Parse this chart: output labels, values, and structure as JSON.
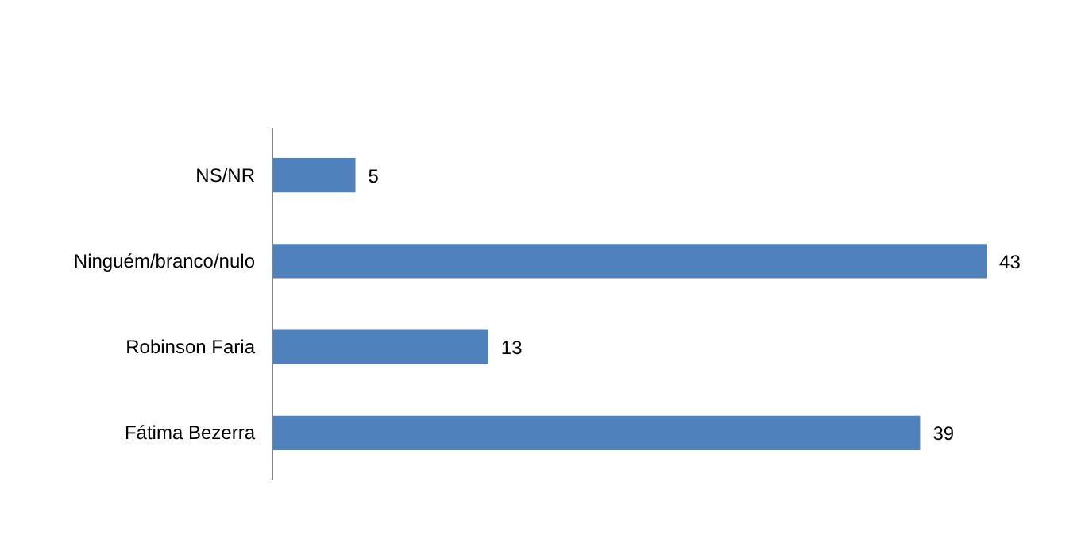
{
  "chart_data": {
    "type": "bar",
    "orientation": "horizontal",
    "categories": [
      "NS/NR",
      "Ninguém/branco/nulo",
      "Robinson Faria",
      "Fátima Bezerra"
    ],
    "values": [
      5,
      43,
      13,
      39
    ],
    "color": "#4f81bd",
    "data_labels": true
  }
}
